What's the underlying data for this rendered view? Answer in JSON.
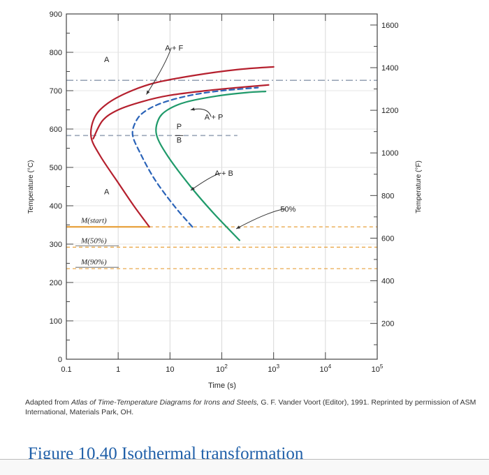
{
  "chart_data": {
    "type": "line",
    "xlabel": "Time (s)",
    "ylabel_left": "Temperature (°C)",
    "ylabel_right": "Temperature (°F)",
    "x_scale": "log",
    "xlim": [
      0.1,
      100000
    ],
    "ylim": [
      0,
      900
    ],
    "x_ticks": [
      0.1,
      1,
      10,
      100,
      1000,
      10000,
      100000
    ],
    "x_tick_labels": [
      "0.1",
      "1",
      "10",
      "10",
      "10",
      "10",
      "10"
    ],
    "x_tick_superscripts": [
      "",
      "",
      "",
      "2",
      "3",
      "4",
      "5"
    ],
    "y_ticks": [
      0,
      100,
      200,
      300,
      400,
      500,
      600,
      700,
      800,
      900
    ],
    "y_tick_labels": [
      "0",
      "100",
      "200",
      "300",
      "400",
      "500",
      "600",
      "700",
      "800",
      "900"
    ],
    "right_ticks_f": [
      200,
      400,
      600,
      800,
      1000,
      1200,
      1400,
      1600
    ],
    "right_tick_labels": [
      "200",
      "400",
      "600",
      "800",
      "1000",
      "1200",
      "1400",
      "1600"
    ],
    "series": [
      {
        "role": "start",
        "style": "solid",
        "color": "#b5202e",
        "x": [
          4,
          2,
          1,
          0.45,
          0.3,
          0.35,
          0.6,
          1.5,
          5,
          30,
          200,
          1000
        ],
        "y": [
          345,
          400,
          460,
          530,
          580,
          630,
          665,
          695,
          720,
          740,
          755,
          762
        ]
      },
      {
        "role": "50pct-upper",
        "style": "solid",
        "color": "#b5202e",
        "x": [
          0.33,
          0.5,
          1,
          3,
          10,
          50,
          200,
          800
        ],
        "y": [
          575,
          622,
          650,
          672,
          688,
          700,
          708,
          715
        ]
      },
      {
        "role": "50pct-bainite",
        "style": "dashed",
        "color": "#2a63b8",
        "x": [
          27,
          12,
          5,
          2.6,
          1.9,
          2.2,
          3.2,
          7,
          25,
          100,
          500
        ],
        "y": [
          345,
          400,
          470,
          540,
          585,
          620,
          645,
          668,
          688,
          700,
          708
        ]
      },
      {
        "role": "finish",
        "style": "solid",
        "color": "#1f9a6a",
        "x": [
          220,
          70,
          25,
          9,
          5.5,
          6,
          9,
          20,
          80,
          300,
          700
        ],
        "y": [
          310,
          380,
          450,
          530,
          585,
          625,
          650,
          670,
          686,
          695,
          698
        ]
      }
    ],
    "isotherms": [
      {
        "y": 727,
        "style": "dash-dot",
        "color": "#9aa6b8",
        "x_range": [
          0.1,
          100000
        ]
      },
      {
        "y": 583,
        "style": "dashed",
        "color": "#9aa6b8",
        "x_range": [
          0.1,
          200
        ]
      }
    ],
    "martensite": [
      {
        "label": "M(start)",
        "y": 345,
        "color": "#e8a13c",
        "solid_until": 4
      },
      {
        "label": "M(50%)",
        "y": 292,
        "color": "#e8a13c"
      },
      {
        "label": "M(90%)",
        "y": 236,
        "color": "#e8a13c"
      }
    ],
    "annotations": [
      {
        "text": "A",
        "x": 0.6,
        "y": 775
      },
      {
        "text": "A",
        "x": 0.6,
        "y": 430
      },
      {
        "text": "A + F",
        "x": 12,
        "y": 805,
        "arrow_to": [
          3.5,
          690
        ]
      },
      {
        "text": "A + P",
        "x": 70,
        "y": 625,
        "arrow_to": [
          25,
          650
        ]
      },
      {
        "text": "A + B",
        "x": 110,
        "y": 478,
        "arrow_to": [
          25,
          440
        ]
      },
      {
        "text": "50%",
        "x": 1900,
        "y": 385,
        "arrow_to": [
          190,
          340
        ]
      },
      {
        "text": "P",
        "x": 15,
        "y": 600
      },
      {
        "text": "B",
        "x": 15,
        "y": 565
      }
    ]
  },
  "caption": {
    "prefix": "Adapted from ",
    "italic": "Atlas of Time-Temperature Diagrams for Irons and Steels,",
    "suffix": " G. F. Vander Voort (Editor), 1991. Reprinted by permission of ASM International, Materials Park, OH."
  },
  "figure_title": "Figure 10.40 Isothermal transformation"
}
